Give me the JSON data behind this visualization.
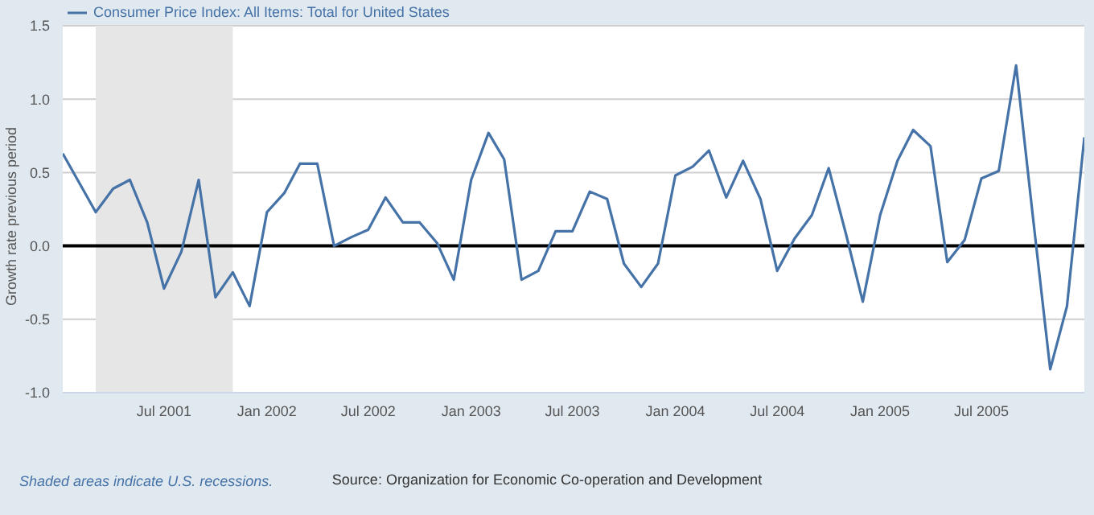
{
  "chart_data": {
    "type": "line",
    "ylabel": "Growth rate previous period",
    "x": [
      "2001-01",
      "2001-02",
      "2001-03",
      "2001-04",
      "2001-05",
      "2001-06",
      "2001-07",
      "2001-08",
      "2001-09",
      "2001-10",
      "2001-11",
      "2001-12",
      "2002-01",
      "2002-02",
      "2002-03",
      "2002-04",
      "2002-05",
      "2002-06",
      "2002-07",
      "2002-08",
      "2002-09",
      "2002-10",
      "2002-11",
      "2002-12",
      "2003-01",
      "2003-02",
      "2003-03",
      "2003-04",
      "2003-05",
      "2003-06",
      "2003-07",
      "2003-08",
      "2003-09",
      "2003-10",
      "2003-11",
      "2003-12",
      "2004-01",
      "2004-02",
      "2004-03",
      "2004-04",
      "2004-05",
      "2004-06",
      "2004-07",
      "2004-08",
      "2004-09",
      "2004-10",
      "2004-11",
      "2004-12",
      "2005-01",
      "2005-02",
      "2005-03",
      "2005-04",
      "2005-05",
      "2005-06",
      "2005-07",
      "2005-08",
      "2005-09",
      "2005-10",
      "2005-11",
      "2005-12",
      "2006-01"
    ],
    "series": [
      {
        "name": "Consumer Price Index: All Items: Total for United States",
        "color": "#4572a7",
        "values": [
          0.63,
          0.42,
          0.23,
          0.39,
          0.45,
          0.16,
          -0.29,
          -0.04,
          0.45,
          -0.35,
          -0.18,
          -0.41,
          0.23,
          0.36,
          0.56,
          0.56,
          0.0,
          0.06,
          0.11,
          0.33,
          0.16,
          0.16,
          0.02,
          -0.23,
          0.45,
          0.77,
          0.59,
          -0.23,
          -0.17,
          0.1,
          0.1,
          0.37,
          0.32,
          -0.12,
          -0.28,
          -0.12,
          0.48,
          0.54,
          0.65,
          0.33,
          0.58,
          0.32,
          -0.17,
          0.05,
          0.21,
          0.53,
          0.08,
          -0.38,
          0.21,
          0.58,
          0.79,
          0.68,
          -0.11,
          0.04,
          0.46,
          0.51,
          1.23,
          0.2,
          -0.84,
          -0.41,
          0.74
        ]
      }
    ],
    "xlim": [
      "2001-01",
      "2006-01"
    ],
    "xticks": [
      {
        "value": "2001-07",
        "label": "Jul 2001"
      },
      {
        "value": "2002-01",
        "label": "Jan 2002"
      },
      {
        "value": "2002-07",
        "label": "Jul 2002"
      },
      {
        "value": "2003-01",
        "label": "Jan 2003"
      },
      {
        "value": "2003-07",
        "label": "Jul 2003"
      },
      {
        "value": "2004-01",
        "label": "Jan 2004"
      },
      {
        "value": "2004-07",
        "label": "Jul 2004"
      },
      {
        "value": "2005-01",
        "label": "Jan 2005"
      },
      {
        "value": "2005-07",
        "label": "Jul 2005"
      }
    ],
    "ylim": [
      -1.0,
      1.5
    ],
    "yticks": [
      {
        "value": -1.0,
        "label": "-1.0"
      },
      {
        "value": -0.5,
        "label": "-0.5"
      },
      {
        "value": 0.0,
        "label": "0.0"
      },
      {
        "value": 0.5,
        "label": "0.5"
      },
      {
        "value": 1.0,
        "label": "1.0"
      },
      {
        "value": 1.5,
        "label": "1.5"
      }
    ],
    "ref_lines": [
      {
        "axis": "y",
        "value": 0,
        "color": "#000000",
        "line_style": "solid"
      }
    ],
    "bands": [
      {
        "axis": "x",
        "from": "2001-03",
        "to": "2001-11",
        "color": "#e6e6e6"
      }
    ],
    "grid": "y",
    "legend": "top left",
    "marker": "none",
    "line_style": "solid",
    "annotations": [
      "Shaded areas indicate U.S. recessions.",
      "Source: Organization for Economic Co-operation and Development"
    ]
  }
}
